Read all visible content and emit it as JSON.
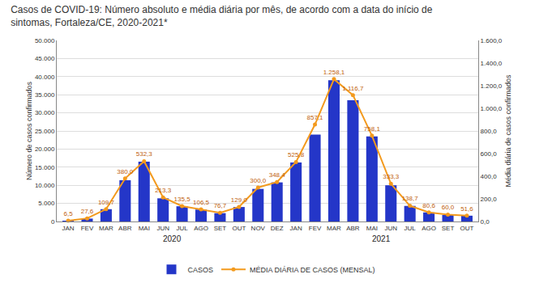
{
  "chart_data": {
    "type": "bar",
    "title": "Casos de COVID-19: Número absoluto e média diária por mês, de acordo com a data do início de sintomas, Fortaleza/CE, 2020-2021*",
    "categories": [
      "JAN",
      "FEV",
      "MAR",
      "ABR",
      "MAI",
      "JUN",
      "JUL",
      "AGO",
      "SET",
      "OUT",
      "NOV",
      "DEZ",
      "JAN",
      "FEV",
      "MAR",
      "ABR",
      "MAI",
      "JUN",
      "JUL",
      "AGO",
      "SET",
      "OUT"
    ],
    "x_groups": [
      {
        "label": "2020",
        "count": 12
      },
      {
        "label": "2021",
        "count": 10
      }
    ],
    "y_label": "Número de casos confirmados",
    "y2_label": "Média diária de casos confirmados",
    "series": [
      {
        "name": "CASOS",
        "type": "bar",
        "color": "#2436c8",
        "values": [
          200,
          800,
          3400,
          11400,
          16500,
          6400,
          4200,
          3300,
          2300,
          4000,
          9000,
          10800,
          16300,
          24000,
          39000,
          33500,
          23500,
          10000,
          4300,
          2500,
          1800,
          1600
        ]
      },
      {
        "name": "MÉDIA DIÁRIA DE CASOS (MENSAL)",
        "type": "line",
        "axis": "y2",
        "color": "#f39a1e",
        "marker": "circle",
        "line_style": "solid",
        "data_labels": true,
        "values": [
          6.5,
          27.6,
          109.7,
          380.0,
          532.3,
          213.3,
          135.5,
          106.5,
          76.7,
          129.0,
          300.0,
          348.4,
          525.8,
          857.1,
          1258.1,
          1116.7,
          758.1,
          333.3,
          138.7,
          80.6,
          60.0,
          51.6
        ],
        "value_labels": [
          "6,5",
          "27,6",
          "109,7",
          "380,0",
          "532,3",
          "213,3",
          "135,5",
          "106,5",
          "76,7",
          "129,0",
          "300,0",
          "348,4",
          "525,8",
          "857,1",
          "1.258,1",
          "1.116,7",
          "758,1",
          "333,3",
          "138,7",
          "80,6",
          "60,0",
          "51,6"
        ]
      }
    ],
    "ylim": [
      0,
      50000
    ],
    "yticks": [
      0,
      {
        "value": 5000,
        "label": "5.000"
      },
      {
        "value": 10000,
        "label": "10.000"
      },
      {
        "value": 15000,
        "label": "15.000"
      },
      {
        "value": 20000,
        "label": "20.000"
      },
      {
        "value": 25000,
        "label": "25.000"
      },
      {
        "value": 30000,
        "label": "30.000"
      },
      {
        "value": 35000,
        "label": "35.000"
      },
      {
        "value": 40000,
        "label": "40.000"
      },
      {
        "value": 45000,
        "label": "45.000"
      },
      {
        "value": 50000,
        "label": "50.000"
      }
    ],
    "y2lim": [
      0,
      1600
    ],
    "y2ticks": [
      {
        "value": 0,
        "label": "0,0"
      },
      {
        "value": 200,
        "label": "200,0"
      },
      {
        "value": 400,
        "label": "400,0"
      },
      {
        "value": 600,
        "label": "600,0"
      },
      {
        "value": 800,
        "label": "800,0"
      },
      {
        "value": 1000,
        "label": "1.000,0"
      },
      {
        "value": 1200,
        "label": "1.200,0"
      },
      {
        "value": 1400,
        "label": "1.400,0"
      },
      {
        "value": 1600,
        "label": "1.600,0"
      }
    ],
    "grid": true,
    "legend": "bottom"
  }
}
